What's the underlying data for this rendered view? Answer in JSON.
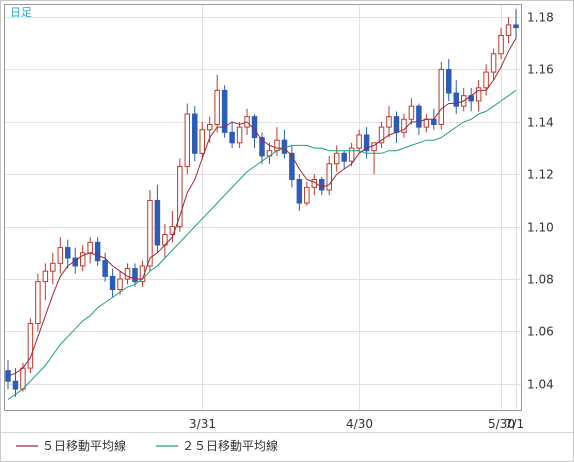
{
  "chart_data": {
    "type": "candlestick",
    "timeframe_label": "日足",
    "x_tick_labels": [
      "3/31",
      "4/30",
      "5/30",
      "7/1"
    ],
    "y_tick_labels": [
      "1.04",
      "1.06",
      "1.08",
      "1.10",
      "1.12",
      "1.14",
      "1.16",
      "1.18"
    ],
    "ylim": [
      1.03,
      1.185
    ],
    "grid": true,
    "legend_position": "bottom-left",
    "colors": {
      "up": "#c0392b",
      "down": "#2a5cb8",
      "ma5": "#a0283c",
      "ma25": "#19a37a",
      "grid": "#e2e2e2"
    },
    "series": [
      {
        "name": "５日移動平均線",
        "color": "#a0283c"
      },
      {
        "name": "２５日移動平均線",
        "color": "#19a37a"
      }
    ],
    "candles": [
      {
        "o": 1.045,
        "h": 1.049,
        "l": 1.038,
        "c": 1.041
      },
      {
        "o": 1.041,
        "h": 1.046,
        "l": 1.035,
        "c": 1.038
      },
      {
        "o": 1.038,
        "h": 1.048,
        "l": 1.037,
        "c": 1.046
      },
      {
        "o": 1.046,
        "h": 1.065,
        "l": 1.044,
        "c": 1.063
      },
      {
        "o": 1.063,
        "h": 1.082,
        "l": 1.06,
        "c": 1.079
      },
      {
        "o": 1.079,
        "h": 1.086,
        "l": 1.072,
        "c": 1.083
      },
      {
        "o": 1.083,
        "h": 1.09,
        "l": 1.078,
        "c": 1.086
      },
      {
        "o": 1.086,
        "h": 1.096,
        "l": 1.082,
        "c": 1.092
      },
      {
        "o": 1.092,
        "h": 1.095,
        "l": 1.084,
        "c": 1.088
      },
      {
        "o": 1.088,
        "h": 1.092,
        "l": 1.082,
        "c": 1.085
      },
      {
        "o": 1.085,
        "h": 1.093,
        "l": 1.083,
        "c": 1.09
      },
      {
        "o": 1.09,
        "h": 1.096,
        "l": 1.086,
        "c": 1.094
      },
      {
        "o": 1.094,
        "h": 1.096,
        "l": 1.085,
        "c": 1.087
      },
      {
        "o": 1.087,
        "h": 1.09,
        "l": 1.079,
        "c": 1.081
      },
      {
        "o": 1.081,
        "h": 1.084,
        "l": 1.073,
        "c": 1.076
      },
      {
        "o": 1.076,
        "h": 1.083,
        "l": 1.074,
        "c": 1.08
      },
      {
        "o": 1.08,
        "h": 1.086,
        "l": 1.078,
        "c": 1.084
      },
      {
        "o": 1.084,
        "h": 1.086,
        "l": 1.077,
        "c": 1.079
      },
      {
        "o": 1.079,
        "h": 1.087,
        "l": 1.077,
        "c": 1.085
      },
      {
        "o": 1.085,
        "h": 1.114,
        "l": 1.083,
        "c": 1.11
      },
      {
        "o": 1.11,
        "h": 1.116,
        "l": 1.09,
        "c": 1.093
      },
      {
        "o": 1.093,
        "h": 1.101,
        "l": 1.088,
        "c": 1.097
      },
      {
        "o": 1.097,
        "h": 1.106,
        "l": 1.094,
        "c": 1.1
      },
      {
        "o": 1.1,
        "h": 1.126,
        "l": 1.098,
        "c": 1.123
      },
      {
        "o": 1.123,
        "h": 1.147,
        "l": 1.12,
        "c": 1.143
      },
      {
        "o": 1.143,
        "h": 1.146,
        "l": 1.125,
        "c": 1.128
      },
      {
        "o": 1.128,
        "h": 1.14,
        "l": 1.126,
        "c": 1.137
      },
      {
        "o": 1.137,
        "h": 1.142,
        "l": 1.132,
        "c": 1.139
      },
      {
        "o": 1.139,
        "h": 1.158,
        "l": 1.136,
        "c": 1.152
      },
      {
        "o": 1.152,
        "h": 1.154,
        "l": 1.134,
        "c": 1.136
      },
      {
        "o": 1.136,
        "h": 1.14,
        "l": 1.13,
        "c": 1.132
      },
      {
        "o": 1.132,
        "h": 1.14,
        "l": 1.13,
        "c": 1.138
      },
      {
        "o": 1.138,
        "h": 1.145,
        "l": 1.135,
        "c": 1.142
      },
      {
        "o": 1.142,
        "h": 1.143,
        "l": 1.13,
        "c": 1.134
      },
      {
        "o": 1.134,
        "h": 1.136,
        "l": 1.124,
        "c": 1.127
      },
      {
        "o": 1.127,
        "h": 1.132,
        "l": 1.124,
        "c": 1.129
      },
      {
        "o": 1.129,
        "h": 1.138,
        "l": 1.127,
        "c": 1.133
      },
      {
        "o": 1.133,
        "h": 1.137,
        "l": 1.126,
        "c": 1.128
      },
      {
        "o": 1.128,
        "h": 1.131,
        "l": 1.115,
        "c": 1.118
      },
      {
        "o": 1.118,
        "h": 1.12,
        "l": 1.106,
        "c": 1.109
      },
      {
        "o": 1.109,
        "h": 1.117,
        "l": 1.108,
        "c": 1.115
      },
      {
        "o": 1.115,
        "h": 1.12,
        "l": 1.112,
        "c": 1.118
      },
      {
        "o": 1.118,
        "h": 1.119,
        "l": 1.112,
        "c": 1.114
      },
      {
        "o": 1.114,
        "h": 1.127,
        "l": 1.112,
        "c": 1.124
      },
      {
        "o": 1.124,
        "h": 1.131,
        "l": 1.121,
        "c": 1.128
      },
      {
        "o": 1.128,
        "h": 1.129,
        "l": 1.122,
        "c": 1.125
      },
      {
        "o": 1.125,
        "h": 1.132,
        "l": 1.123,
        "c": 1.13
      },
      {
        "o": 1.13,
        "h": 1.137,
        "l": 1.128,
        "c": 1.135
      },
      {
        "o": 1.135,
        "h": 1.138,
        "l": 1.126,
        "c": 1.129
      },
      {
        "o": 1.129,
        "h": 1.132,
        "l": 1.12,
        "c": 1.132
      },
      {
        "o": 1.132,
        "h": 1.14,
        "l": 1.13,
        "c": 1.138
      },
      {
        "o": 1.138,
        "h": 1.146,
        "l": 1.134,
        "c": 1.142
      },
      {
        "o": 1.142,
        "h": 1.144,
        "l": 1.132,
        "c": 1.136
      },
      {
        "o": 1.136,
        "h": 1.143,
        "l": 1.134,
        "c": 1.141
      },
      {
        "o": 1.141,
        "h": 1.149,
        "l": 1.139,
        "c": 1.146
      },
      {
        "o": 1.146,
        "h": 1.147,
        "l": 1.135,
        "c": 1.138
      },
      {
        "o": 1.138,
        "h": 1.143,
        "l": 1.136,
        "c": 1.141
      },
      {
        "o": 1.141,
        "h": 1.145,
        "l": 1.137,
        "c": 1.139
      },
      {
        "o": 1.139,
        "h": 1.163,
        "l": 1.137,
        "c": 1.16
      },
      {
        "o": 1.16,
        "h": 1.164,
        "l": 1.148,
        "c": 1.151
      },
      {
        "o": 1.151,
        "h": 1.156,
        "l": 1.143,
        "c": 1.146
      },
      {
        "o": 1.146,
        "h": 1.153,
        "l": 1.144,
        "c": 1.15
      },
      {
        "o": 1.15,
        "h": 1.153,
        "l": 1.144,
        "c": 1.148
      },
      {
        "o": 1.148,
        "h": 1.156,
        "l": 1.144,
        "c": 1.153
      },
      {
        "o": 1.153,
        "h": 1.162,
        "l": 1.15,
        "c": 1.159
      },
      {
        "o": 1.159,
        "h": 1.168,
        "l": 1.156,
        "c": 1.166
      },
      {
        "o": 1.166,
        "h": 1.176,
        "l": 1.164,
        "c": 1.173
      },
      {
        "o": 1.173,
        "h": 1.18,
        "l": 1.17,
        "c": 1.177
      },
      {
        "o": 1.177,
        "h": 1.183,
        "l": 1.172,
        "c": 1.176
      }
    ],
    "ma5": [
      1.043,
      1.044,
      1.046,
      1.05,
      1.058,
      1.066,
      1.074,
      1.081,
      1.085,
      1.087,
      1.089,
      1.09,
      1.089,
      1.088,
      1.085,
      1.083,
      1.081,
      1.08,
      1.08,
      1.088,
      1.09,
      1.093,
      1.096,
      1.104,
      1.113,
      1.118,
      1.126,
      1.134,
      1.138,
      1.138,
      1.14,
      1.139,
      1.14,
      1.137,
      1.133,
      1.131,
      1.13,
      1.13,
      1.127,
      1.122,
      1.118,
      1.117,
      1.115,
      1.116,
      1.12,
      1.122,
      1.124,
      1.128,
      1.13,
      1.131,
      1.133,
      1.135,
      1.136,
      1.137,
      1.14,
      1.14,
      1.141,
      1.141,
      1.145,
      1.147,
      1.147,
      1.148,
      1.15,
      1.152,
      1.152,
      1.156,
      1.161,
      1.167,
      1.172
    ],
    "ma25": [
      1.034,
      1.036,
      1.038,
      1.041,
      1.044,
      1.047,
      1.051,
      1.055,
      1.058,
      1.061,
      1.064,
      1.066,
      1.069,
      1.071,
      1.073,
      1.075,
      1.077,
      1.078,
      1.08,
      1.083,
      1.085,
      1.088,
      1.091,
      1.094,
      1.097,
      1.1,
      1.103,
      1.106,
      1.109,
      1.112,
      1.115,
      1.118,
      1.121,
      1.123,
      1.125,
      1.127,
      1.129,
      1.13,
      1.131,
      1.131,
      1.131,
      1.13,
      1.13,
      1.129,
      1.129,
      1.129,
      1.129,
      1.129,
      1.128,
      1.128,
      1.128,
      1.129,
      1.129,
      1.13,
      1.131,
      1.132,
      1.133,
      1.133,
      1.134,
      1.136,
      1.138,
      1.14,
      1.141,
      1.143,
      1.144,
      1.146,
      1.148,
      1.15,
      1.152
    ]
  }
}
